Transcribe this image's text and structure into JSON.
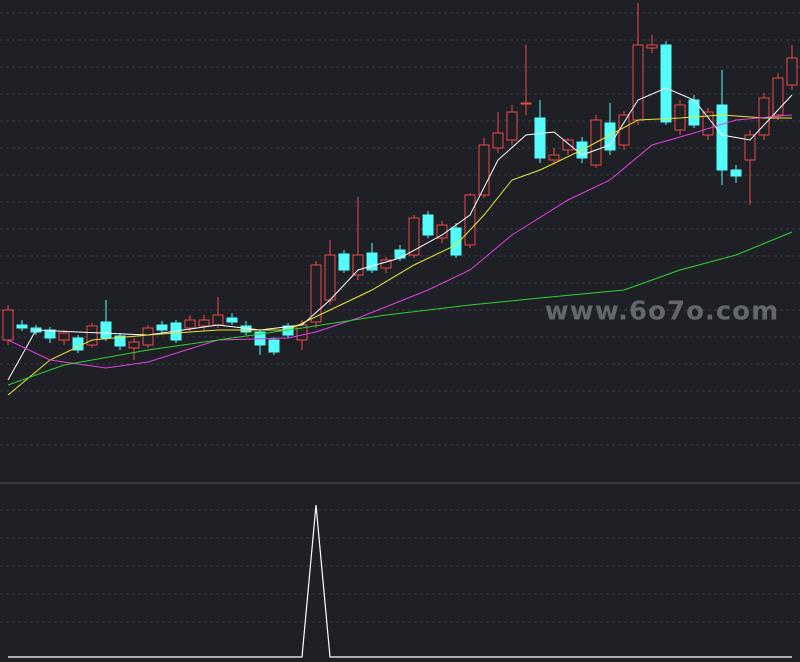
{
  "chart_data": {
    "type": "candlestick",
    "watermark": "www.6o7o.com",
    "ylim": [
      0,
      483
    ],
    "up_color": "#f04848",
    "down_color": "#54fcfc",
    "ohlc": [
      [
        143,
        178,
        138,
        173
      ],
      [
        158,
        163,
        152,
        155
      ],
      [
        155,
        158,
        148,
        151
      ],
      [
        153,
        156,
        140,
        145
      ],
      [
        143,
        153,
        138,
        150
      ],
      [
        145,
        148,
        130,
        133
      ],
      [
        138,
        160,
        135,
        157
      ],
      [
        161,
        183,
        142,
        145
      ],
      [
        147,
        150,
        133,
        137
      ],
      [
        135,
        145,
        123,
        141
      ],
      [
        138,
        158,
        135,
        155
      ],
      [
        158,
        162,
        150,
        153
      ],
      [
        160,
        163,
        140,
        143
      ],
      [
        155,
        168,
        152,
        163
      ],
      [
        157,
        168,
        152,
        163
      ],
      [
        158,
        186,
        155,
        168
      ],
      [
        165,
        170,
        158,
        161
      ],
      [
        157,
        162,
        148,
        151
      ],
      [
        151,
        154,
        128,
        138
      ],
      [
        143,
        146,
        128,
        131
      ],
      [
        157,
        160,
        145,
        148
      ],
      [
        143,
        163,
        133,
        158
      ],
      [
        161,
        222,
        155,
        218
      ],
      [
        183,
        243,
        178,
        228
      ],
      [
        229,
        233,
        210,
        213
      ],
      [
        208,
        286,
        203,
        228
      ],
      [
        230,
        240,
        210,
        213
      ],
      [
        215,
        226,
        210,
        223
      ],
      [
        233,
        238,
        222,
        225
      ],
      [
        228,
        268,
        225,
        265
      ],
      [
        268,
        272,
        245,
        248
      ],
      [
        245,
        262,
        240,
        258
      ],
      [
        255,
        260,
        225,
        228
      ],
      [
        238,
        290,
        235,
        288
      ],
      [
        288,
        345,
        285,
        338
      ],
      [
        335,
        371,
        330,
        350
      ],
      [
        343,
        378,
        338,
        371
      ],
      [
        380,
        438,
        368,
        380
      ],
      [
        365,
        383,
        320,
        325
      ],
      [
        323,
        335,
        318,
        328
      ],
      [
        333,
        345,
        328,
        343
      ],
      [
        341,
        346,
        320,
        325
      ],
      [
        318,
        368,
        315,
        363
      ],
      [
        360,
        380,
        328,
        333
      ],
      [
        338,
        372,
        333,
        368
      ],
      [
        363,
        480,
        358,
        438
      ],
      [
        435,
        448,
        430,
        438
      ],
      [
        438,
        442,
        358,
        361
      ],
      [
        353,
        383,
        348,
        378
      ],
      [
        383,
        388,
        355,
        358
      ],
      [
        348,
        375,
        343,
        371
      ],
      [
        378,
        413,
        298,
        313
      ],
      [
        313,
        318,
        300,
        307
      ],
      [
        323,
        353,
        278,
        348
      ],
      [
        348,
        390,
        343,
        385
      ],
      [
        368,
        410,
        363,
        405
      ],
      [
        398,
        438,
        393,
        425
      ]
    ],
    "lines": [
      {
        "color": "#ffffff",
        "x": [
          0,
          2,
          5,
          10,
          15,
          18,
          21,
          23,
          25,
          28,
          31,
          33,
          35,
          37,
          39,
          41,
          43,
          45,
          47,
          49,
          51,
          53,
          56
        ],
        "values": [
          103,
          153,
          151,
          148,
          158,
          153,
          158,
          183,
          213,
          225,
          248,
          268,
          323,
          348,
          351,
          328,
          338,
          383,
          395,
          383,
          348,
          343,
          388
        ]
      },
      {
        "color": "#e8e830",
        "x": [
          0,
          3,
          6,
          10,
          15,
          20,
          23,
          26,
          29,
          32,
          34,
          36,
          38,
          41,
          43,
          45,
          48,
          51,
          54,
          56
        ],
        "values": [
          88,
          123,
          143,
          148,
          153,
          153,
          173,
          193,
          218,
          238,
          268,
          303,
          313,
          333,
          348,
          363,
          365,
          368,
          365,
          365
        ]
      },
      {
        "color": "#e040e0",
        "x": [
          0,
          3,
          7,
          10,
          15,
          20,
          22,
          25,
          30,
          33,
          36,
          40,
          43,
          46,
          49,
          52,
          56
        ],
        "values": [
          143,
          123,
          115,
          121,
          143,
          145,
          151,
          165,
          193,
          213,
          248,
          283,
          303,
          338,
          350,
          363,
          368
        ]
      },
      {
        "color": "#30d030",
        "x": [
          0,
          4,
          10,
          15,
          21,
          27,
          33,
          38,
          44,
          48,
          52,
          56
        ],
        "values": [
          98,
          118,
          133,
          143,
          155,
          168,
          178,
          185,
          193,
          213,
          228,
          251
        ]
      }
    ],
    "indicator": {
      "color": "#ffffff",
      "ylim": [
        0,
        1
      ],
      "values": [
        0,
        0,
        0,
        0,
        0,
        0,
        0,
        0,
        0,
        0,
        0,
        0,
        0,
        0,
        0,
        0,
        0,
        0,
        0,
        0,
        0,
        0,
        1,
        0,
        0,
        0,
        0,
        0,
        0,
        0,
        0,
        0,
        0,
        0,
        0,
        0,
        0,
        0,
        0,
        0,
        0,
        0,
        0,
        0,
        0,
        0,
        0,
        0,
        0,
        0,
        0,
        0,
        0,
        0,
        0,
        0,
        0
      ]
    }
  }
}
